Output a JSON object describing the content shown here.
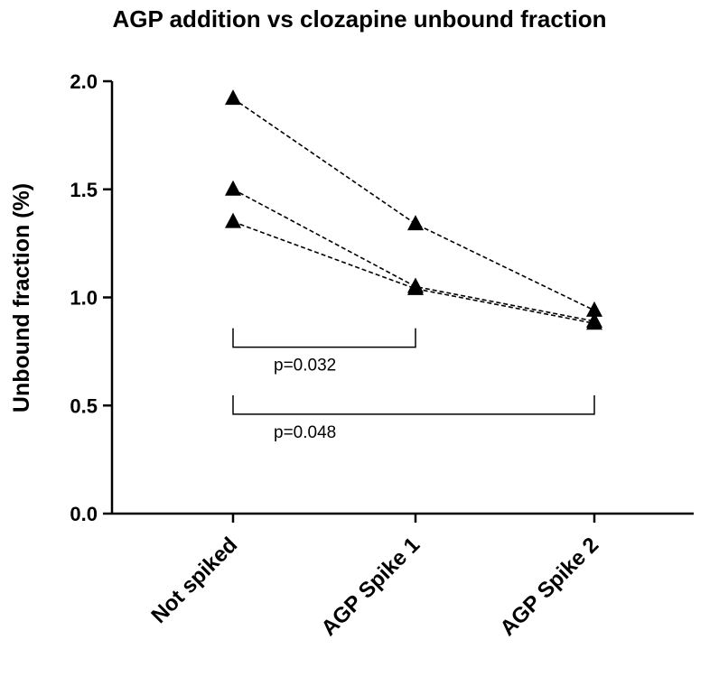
{
  "chart_data": {
    "type": "line",
    "title": "AGP addition vs clozapine unbound fraction",
    "ylabel": "Unbound fraction (%)",
    "xlabel": "",
    "categories": [
      "Not spiked",
      "AGP Spike 1",
      "AGP Spike 2"
    ],
    "ylim": [
      0,
      2.0
    ],
    "yticks": [
      "0.0",
      "0.5",
      "1.0",
      "1.5",
      "2.0"
    ],
    "series": [
      {
        "values": [
          1.92,
          1.34,
          0.94
        ]
      },
      {
        "values": [
          1.5,
          1.05,
          0.89
        ]
      },
      {
        "values": [
          1.35,
          1.04,
          0.88
        ]
      }
    ],
    "marker": "triangle",
    "line_style": "dashed",
    "color": "#000000",
    "annotations": [
      {
        "text": "p=0.032",
        "from": "Not spiked",
        "to": "AGP Spike 1",
        "level": 0.77
      },
      {
        "text": "p=0.048",
        "from": "Not spiked",
        "to": "AGP Spike 2",
        "level": 0.46
      }
    ],
    "grid": false,
    "legend": "none"
  }
}
